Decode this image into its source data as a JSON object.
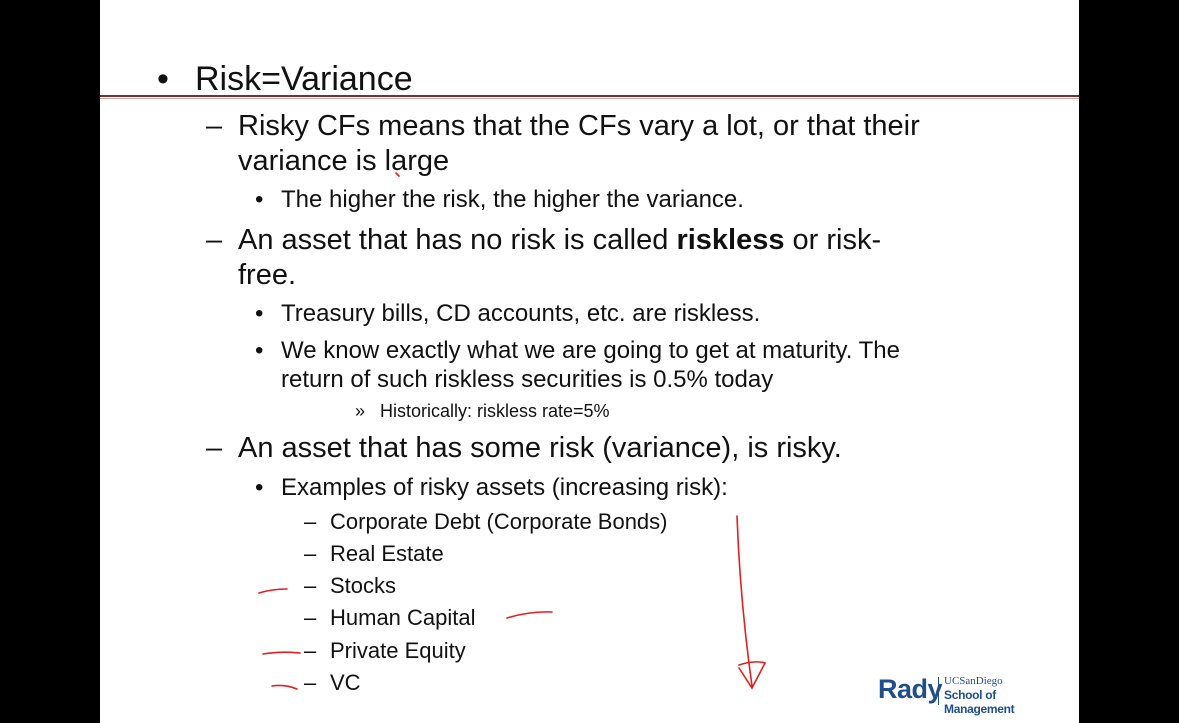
{
  "slide": {
    "bullet_l1": "•",
    "title": "Risk=Variance",
    "dash": "–",
    "bullet": "•",
    "raquo": "»",
    "item1_line1": "Risky CFs means that the CFs vary a lot, or that their",
    "item1_line2": "variance is large",
    "item1_sub1": "The higher the risk, the higher the variance.",
    "item2_pre": "An asset that has no risk is called ",
    "item2_bold": "riskless",
    "item2_post": " or risk-",
    "item2_line2": "free.",
    "item2_sub1": "Treasury bills, CD accounts, etc. are riskless.",
    "item2_sub2_line1": "We know exactly what we are going to get at maturity. The",
    "item2_sub2_line2": "return of such riskless securities is 0.5% today",
    "item2_sub2_note": "Historically: riskless rate=5%",
    "item3": "An asset that has some risk (variance), is risky.",
    "item3_sub1": "Examples of risky assets (increasing risk):",
    "risky_assets": [
      "Corporate Debt (Corporate Bonds)",
      "Real Estate",
      "Stocks",
      "Human Capital",
      "Private Equity",
      "VC"
    ]
  },
  "logo": {
    "rady": "Rady",
    "ucsd": "UCSanDiego",
    "school": "School of Management",
    "brand_color": "#1f4e8c"
  },
  "annotation_color": "#e02020"
}
